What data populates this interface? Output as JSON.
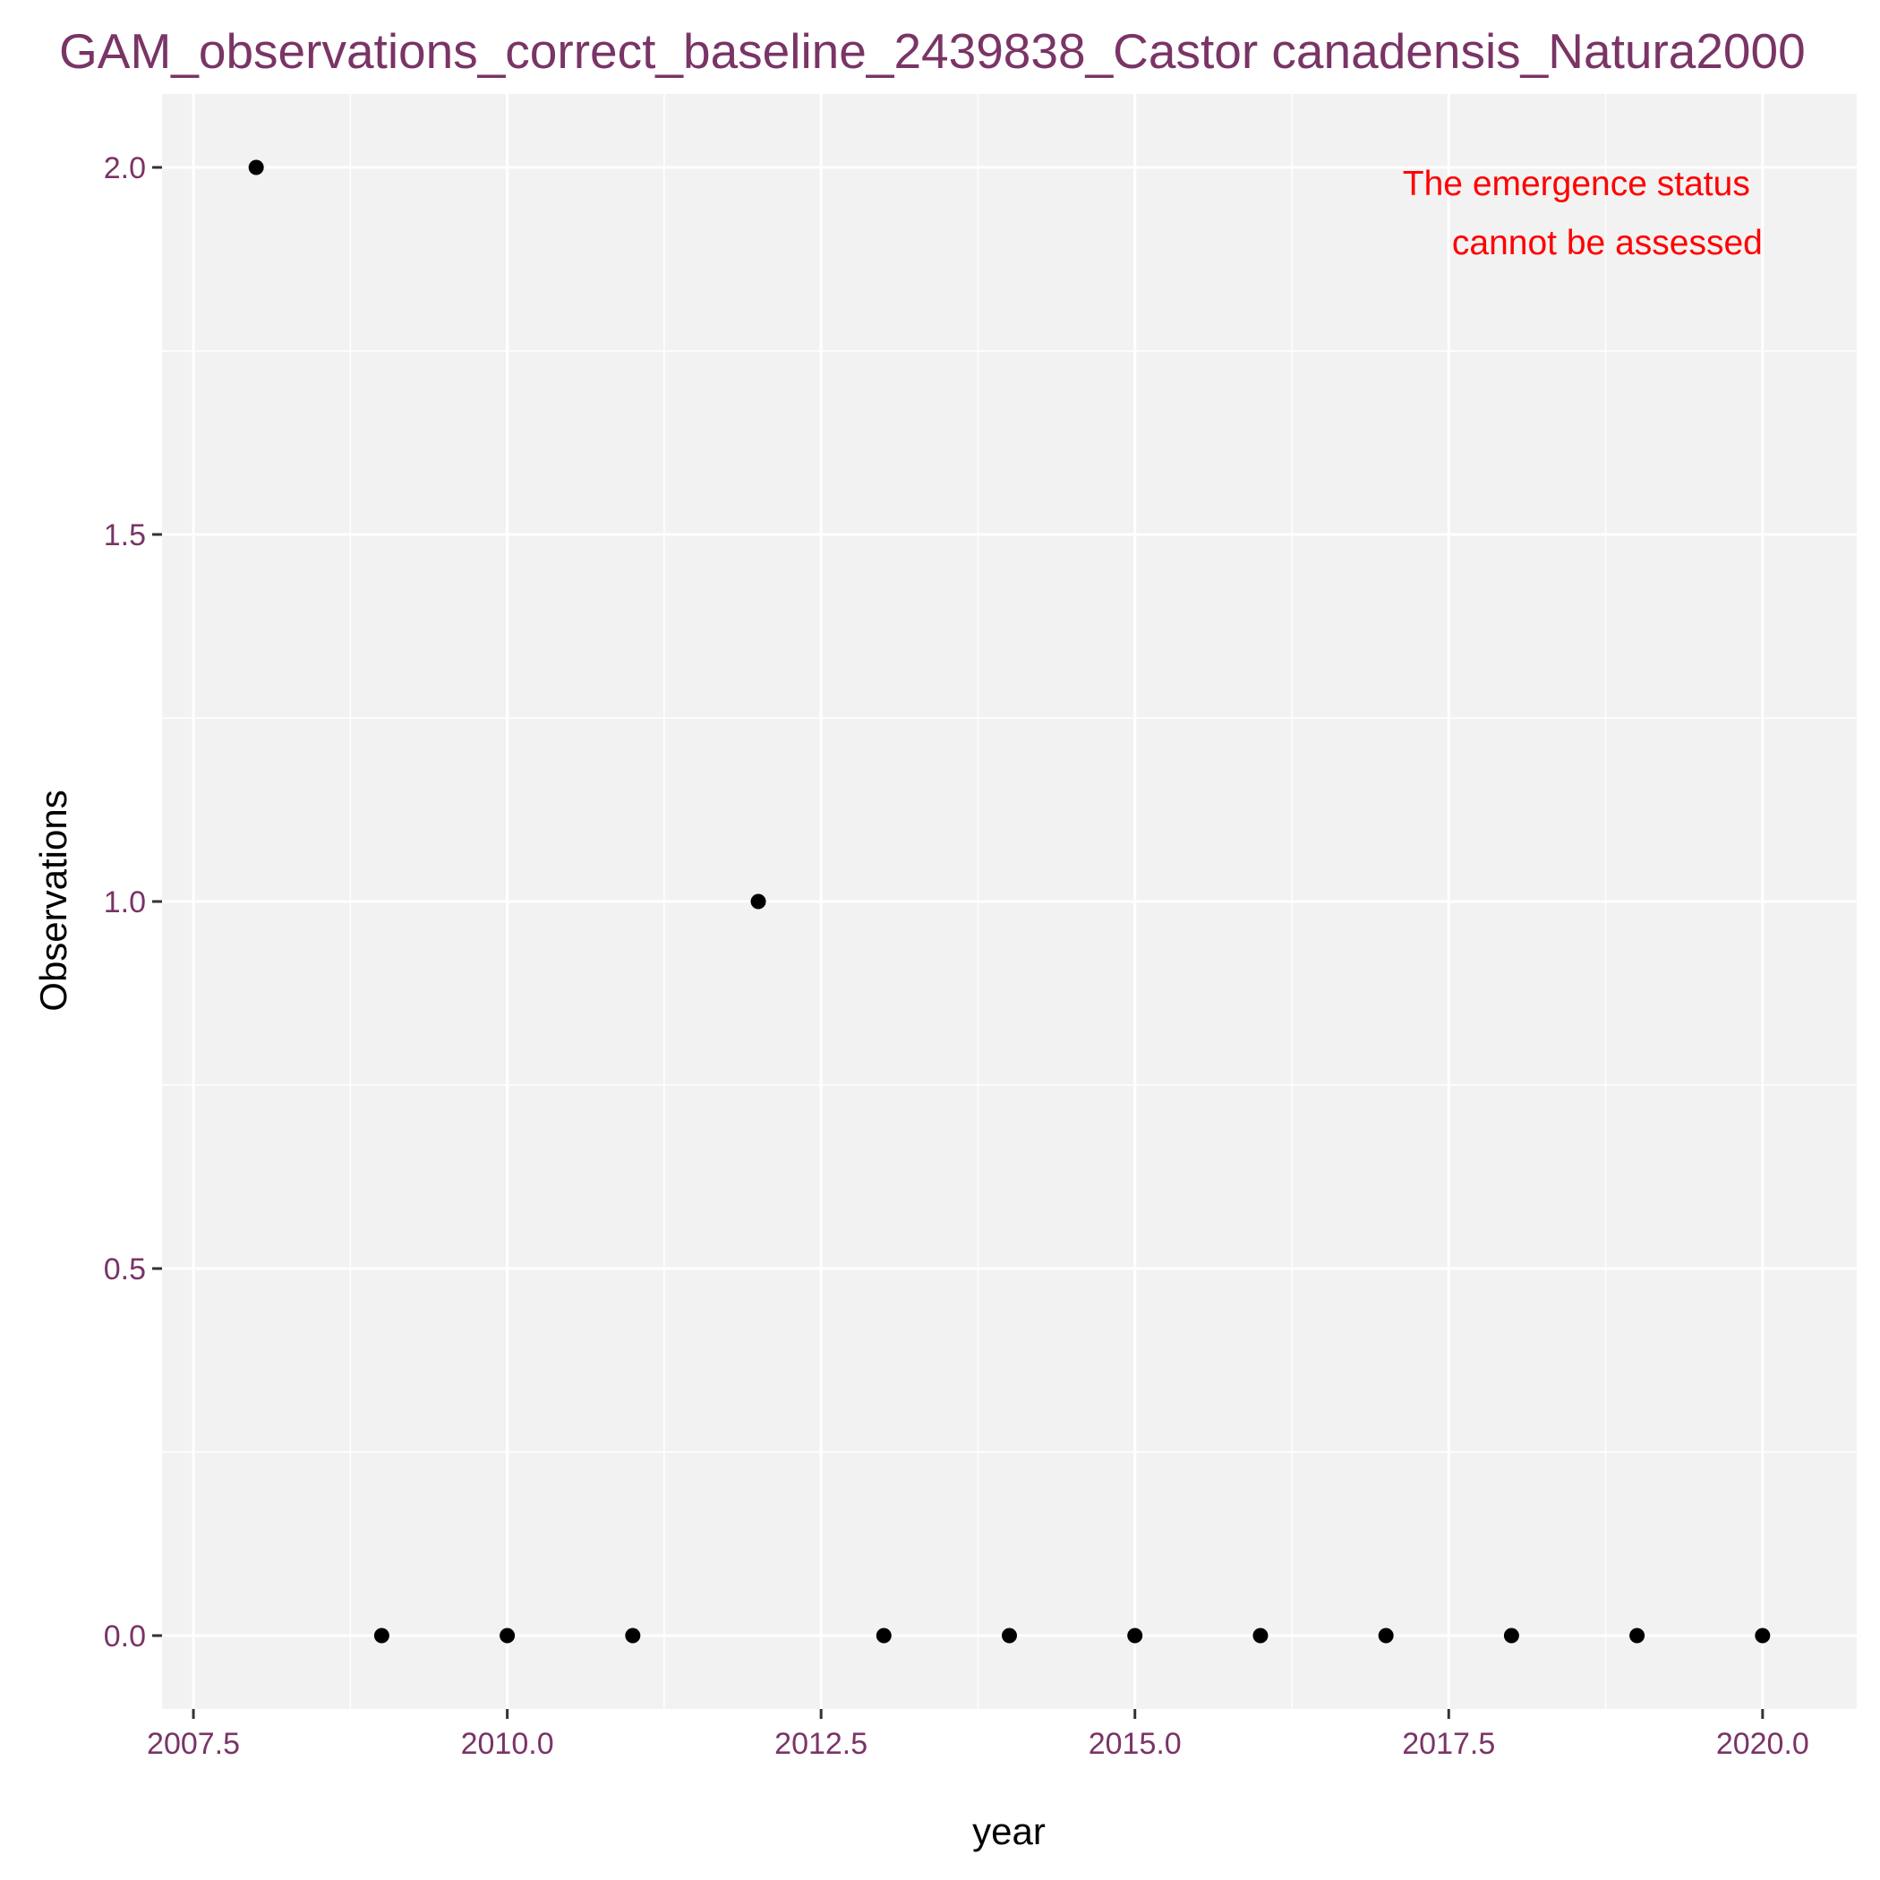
{
  "chart_data": {
    "type": "scatter",
    "title": "GAM_observations_correct_baseline_2439838_Castor canadensis_Natura2000",
    "xlabel": "year",
    "ylabel": "Observations",
    "xlim": [
      2007.25,
      2020.75
    ],
    "ylim": [
      -0.1,
      2.1
    ],
    "x_ticks": [
      2007.5,
      2010.0,
      2012.5,
      2015.0,
      2017.5,
      2020.0
    ],
    "x_tick_labels": [
      "2007.5",
      "2010.0",
      "2012.5",
      "2015.0",
      "2017.5",
      "2020.0"
    ],
    "y_ticks": [
      0.0,
      0.5,
      1.0,
      1.5,
      2.0
    ],
    "y_tick_labels": [
      "0.0",
      "0.5",
      "1.0",
      "1.5",
      "2.0"
    ],
    "grid": true,
    "annotation": [
      "The emergence status",
      "cannot be assessed"
    ],
    "points": [
      {
        "x": 2008,
        "y": 2
      },
      {
        "x": 2009,
        "y": 0
      },
      {
        "x": 2010,
        "y": 0
      },
      {
        "x": 2011,
        "y": 0
      },
      {
        "x": 2012,
        "y": 1
      },
      {
        "x": 2013,
        "y": 0
      },
      {
        "x": 2014,
        "y": 0
      },
      {
        "x": 2015,
        "y": 0
      },
      {
        "x": 2016,
        "y": 0
      },
      {
        "x": 2017,
        "y": 0
      },
      {
        "x": 2018,
        "y": 0
      },
      {
        "x": 2019,
        "y": 0
      },
      {
        "x": 2020,
        "y": 0
      }
    ]
  },
  "colors": {
    "title": "#7a3466",
    "tick_labels": "#7a3466",
    "annotation": "#ff0000",
    "panel": "#f2f2f2",
    "grid": "#ffffff",
    "points": "#000000"
  }
}
